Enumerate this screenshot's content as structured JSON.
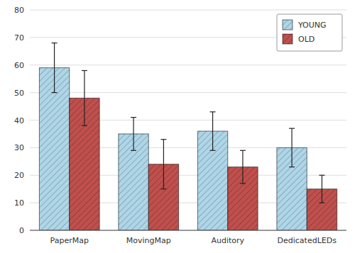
{
  "chart_data": {
    "type": "bar",
    "categories": [
      "PaperMap",
      "MovingMap",
      "Auditory",
      "DedicatedLEDs"
    ],
    "series": [
      {
        "name": "YOUNG",
        "color": "#aed6e8",
        "values": [
          59,
          35,
          36,
          30
        ],
        "errors": [
          9,
          6,
          7,
          7
        ]
      },
      {
        "name": "OLD",
        "color": "#c0504d",
        "values": [
          48,
          24,
          23,
          15
        ],
        "errors": [
          10,
          9,
          6,
          5
        ]
      }
    ],
    "ylim": [
      0,
      80
    ],
    "yticks": [
      0,
      10,
      20,
      30,
      40,
      50,
      60,
      70,
      80
    ],
    "grid": true,
    "legend": "upper right"
  }
}
